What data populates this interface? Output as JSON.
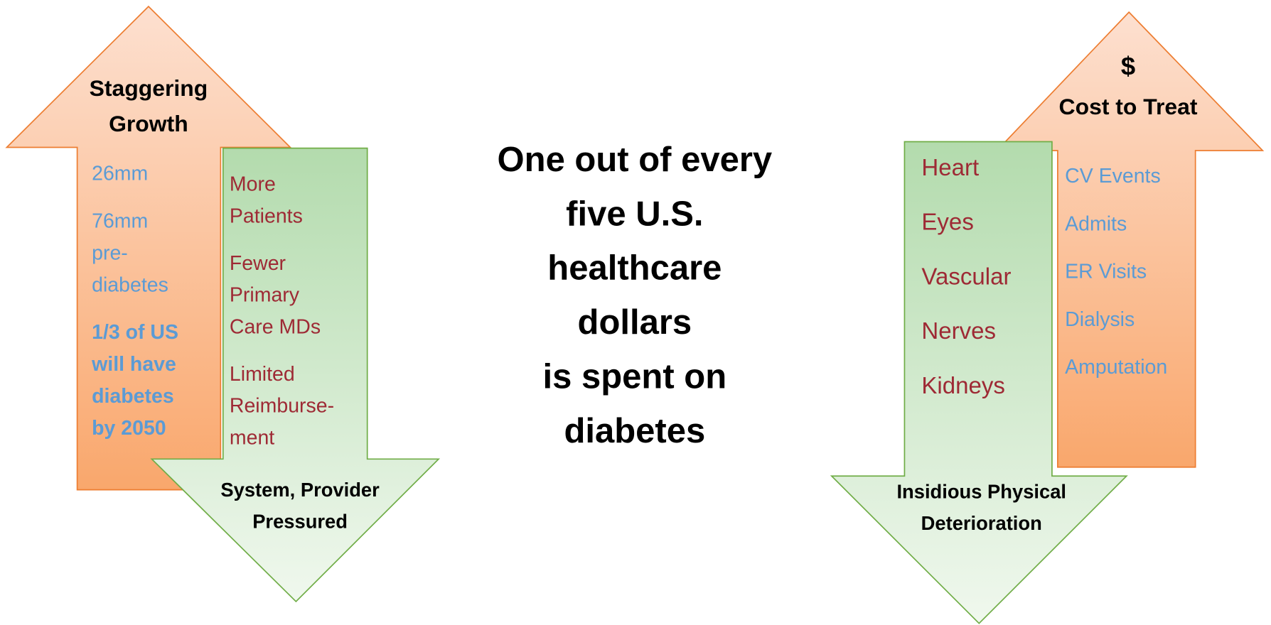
{
  "growth": {
    "title": [
      "Staggering",
      "Growth"
    ],
    "items": [
      [
        "26mm"
      ],
      [
        "76mm",
        "pre-",
        "diabetes"
      ],
      [
        "1/3 of US",
        "will have",
        "diabetes",
        "by 2050"
      ]
    ]
  },
  "pressure": {
    "items": [
      [
        "More",
        "Patients"
      ],
      [
        "Fewer",
        "Primary",
        "Care MDs"
      ],
      [
        "Limited",
        "Reimburse-",
        "ment"
      ]
    ],
    "footer": [
      "System, Provider",
      "Pressured"
    ]
  },
  "center": {
    "lines": [
      "One out of every",
      "five U.S.",
      "healthcare",
      "dollars",
      "is spent on",
      "diabetes"
    ]
  },
  "deterioration": {
    "items": [
      "Heart",
      "Eyes",
      "Vascular",
      "Nerves",
      "Kidneys"
    ],
    "footer": [
      "Insidious Physical",
      "Deterioration"
    ]
  },
  "cost": {
    "title": [
      "$",
      "Cost to Treat"
    ],
    "items": [
      "CV Events",
      "Admits",
      "ER Visits",
      "Dialysis",
      "Amputation"
    ]
  }
}
